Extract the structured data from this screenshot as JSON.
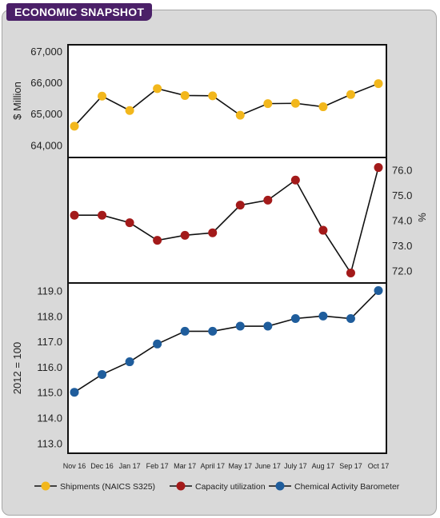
{
  "header": {
    "title": "ECONOMIC SNAPSHOT"
  },
  "chart_data": {
    "type": "line",
    "categories": [
      "Nov 16",
      "Dec 16",
      "Jan 17",
      "Feb 17",
      "Mar 17",
      "April 17",
      "May 17",
      "June 17",
      "July 17",
      "Aug 17",
      "Sep 17",
      "Oct 17"
    ],
    "panels": [
      {
        "ylabel": "$ Million",
        "yaxis_side": "left",
        "ylim": [
          63600,
          67200
        ],
        "ticks": [
          "64,000",
          "65,000",
          "66,000",
          "67,000"
        ],
        "tick_values": [
          64000,
          65000,
          66000,
          67000
        ],
        "series": {
          "name": "Shipments (NAICS S325)",
          "color": "#f2b71c",
          "values": [
            64600,
            65560,
            65100,
            65800,
            65580,
            65570,
            64950,
            65320,
            65330,
            65220,
            65610,
            65960
          ]
        }
      },
      {
        "ylabel": "%",
        "yaxis_side": "right",
        "ylim": [
          71.5,
          76.5
        ],
        "ticks": [
          "72.0",
          "73.0",
          "74.0",
          "75.0",
          "76.0"
        ],
        "tick_values": [
          72,
          73,
          74,
          75,
          76
        ],
        "series": {
          "name": "Capacity utilization",
          "color": "#a31a1a",
          "values": [
            74.2,
            74.2,
            73.9,
            73.2,
            73.4,
            73.5,
            74.6,
            74.8,
            75.6,
            73.6,
            71.9,
            76.1
          ]
        }
      },
      {
        "ylabel": "2012 = 100",
        "yaxis_side": "left",
        "ylim": [
          112.6,
          119.3
        ],
        "ticks": [
          "113.0",
          "114.0",
          "115.0",
          "116.0",
          "117.0",
          "118.0",
          "119.0"
        ],
        "tick_values": [
          113,
          114,
          115,
          116,
          117,
          118,
          119
        ],
        "series": {
          "name": "Chemical Activity Barometer",
          "color": "#1f5d9c",
          "values": [
            115.0,
            115.7,
            116.2,
            116.9,
            117.4,
            117.4,
            117.6,
            117.6,
            117.9,
            118.0,
            117.9,
            119.0
          ]
        }
      }
    ],
    "legend": [
      {
        "name": "Shipments (NAICS S325)",
        "color": "#f2b71c"
      },
      {
        "name": "Capacity utilization",
        "color": "#a31a1a"
      },
      {
        "name": "Chemical Activity Barometer",
        "color": "#1f5d9c"
      }
    ],
    "legend_position": "bottom",
    "grid": false
  }
}
